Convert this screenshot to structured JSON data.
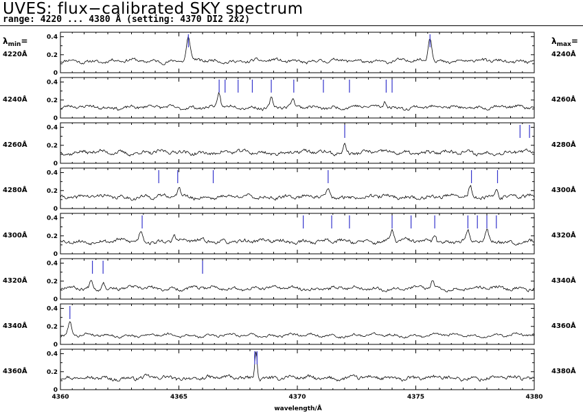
{
  "header": {
    "title": "UVES: flux−calibrated SKY spectrum",
    "subtitle": "range: 4220 ... 4380 Å (setting: 4370 DI2 2x2)"
  },
  "labels": {
    "lambda_min_prefix": "λ",
    "lambda_min_sub": "min",
    "lambda_max_prefix": "λ",
    "lambda_max_sub": "max",
    "eq": "="
  },
  "colors": {
    "line": "#000000",
    "marker": "#3333cc",
    "frame": "#000000"
  },
  "chart_data": {
    "type": "line",
    "xlabel": "wavelength/Å",
    "ylim": [
      0,
      0.45
    ],
    "yticks": [
      "0",
      "0.2",
      "0.4"
    ],
    "bottom_xticks": [
      "4360",
      "4365",
      "4370",
      "4375",
      "4380"
    ],
    "panels": [
      {
        "min_label": "4220Å",
        "max_label": "4240Å",
        "start": 4220,
        "end": 4240,
        "baseline": 0.13,
        "noise": 0.025,
        "seed": 11,
        "peaks": [
          {
            "x": 4225.4,
            "h": 0.26,
            "w": 0.08
          },
          {
            "x": 4235.6,
            "h": 0.27,
            "w": 0.08
          }
        ],
        "markers": [
          4225.4,
          4235.6
        ]
      },
      {
        "min_label": "4240Å",
        "max_label": "4260Å",
        "start": 4240,
        "end": 4260,
        "baseline": 0.12,
        "noise": 0.025,
        "seed": 23,
        "peaks": [
          {
            "x": 4246.7,
            "h": 0.15,
            "w": 0.06
          },
          {
            "x": 4248.9,
            "h": 0.1,
            "w": 0.06
          },
          {
            "x": 4249.8,
            "h": 0.08,
            "w": 0.06
          },
          {
            "x": 4253.7,
            "h": 0.08,
            "w": 0.06
          }
        ],
        "markers": [
          4246.7,
          4246.95,
          4247.5,
          4248.1,
          4248.9,
          4249.85,
          4251.1,
          4252.2,
          4253.75,
          4254.0
        ]
      },
      {
        "min_label": "4260Å",
        "max_label": "4280Å",
        "start": 4260,
        "end": 4280,
        "baseline": 0.12,
        "noise": 0.03,
        "seed": 37,
        "peaks": [
          {
            "x": 4272.0,
            "h": 0.09,
            "w": 0.06
          }
        ],
        "markers": [
          4272.0,
          4279.4,
          4279.8
        ]
      },
      {
        "min_label": "4280Å",
        "max_label": "4300Å",
        "start": 4280,
        "end": 4300,
        "baseline": 0.13,
        "noise": 0.03,
        "seed": 41,
        "peaks": [
          {
            "x": 4285.0,
            "h": 0.12,
            "w": 0.06
          },
          {
            "x": 4291.3,
            "h": 0.08,
            "w": 0.06
          },
          {
            "x": 4297.3,
            "h": 0.12,
            "w": 0.06
          },
          {
            "x": 4298.4,
            "h": 0.1,
            "w": 0.06
          }
        ],
        "markers": [
          4284.15,
          4284.95,
          4286.45,
          4291.3,
          4297.35,
          4298.45
        ]
      },
      {
        "min_label": "4300Å",
        "max_label": "4320Å",
        "start": 4300,
        "end": 4320,
        "baseline": 0.14,
        "noise": 0.03,
        "seed": 53,
        "peaks": [
          {
            "x": 4303.4,
            "h": 0.11,
            "w": 0.07
          },
          {
            "x": 4304.8,
            "h": 0.08,
            "w": 0.06
          },
          {
            "x": 4314.0,
            "h": 0.12,
            "w": 0.07
          },
          {
            "x": 4315.8,
            "h": 0.09,
            "w": 0.06
          },
          {
            "x": 4317.2,
            "h": 0.1,
            "w": 0.06
          },
          {
            "x": 4318.0,
            "h": 0.12,
            "w": 0.06
          }
        ],
        "markers": [
          4303.45,
          4310.25,
          4311.45,
          4312.2,
          4314.0,
          4314.8,
          4315.8,
          4317.2,
          4317.6,
          4318.0,
          4318.4
        ]
      },
      {
        "min_label": "4320Å",
        "max_label": "4340Å",
        "start": 4320,
        "end": 4340,
        "baseline": 0.12,
        "noise": 0.025,
        "seed": 67,
        "peaks": [
          {
            "x": 4321.3,
            "h": 0.1,
            "w": 0.06
          },
          {
            "x": 4321.8,
            "h": 0.09,
            "w": 0.06
          },
          {
            "x": 4335.7,
            "h": 0.08,
            "w": 0.06
          }
        ],
        "markers": [
          4321.35,
          4321.8,
          4326.0
        ]
      },
      {
        "min_label": "4340Å",
        "max_label": "4360Å",
        "start": 4340,
        "end": 4360,
        "baseline": 0.1,
        "noise": 0.02,
        "seed": 79,
        "peaks": [
          {
            "x": 4340.4,
            "h": 0.14,
            "w": 0.08
          }
        ],
        "markers": [
          4340.4
        ]
      },
      {
        "min_label": "4360Å",
        "max_label": "4380Å",
        "start": 4360,
        "end": 4380,
        "baseline": 0.13,
        "noise": 0.03,
        "seed": 97,
        "peaks": [
          {
            "x": 4368.25,
            "h": 0.32,
            "w": 0.05
          }
        ],
        "markers": [
          4368.2,
          4368.3
        ]
      }
    ]
  }
}
